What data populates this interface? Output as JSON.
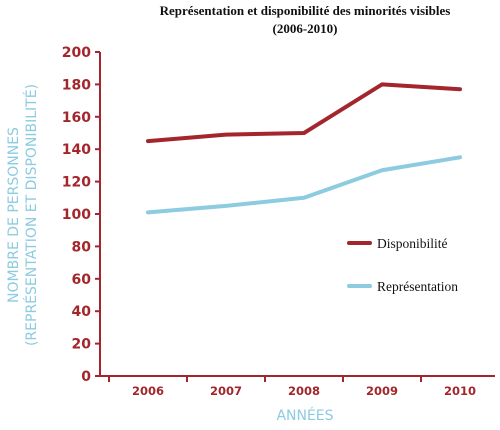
{
  "chart_data": {
    "type": "line",
    "title": "Représentation et disponibilité des minorités visibles",
    "subtitle": "(2006-2010)",
    "xlabel": "ANNÉES",
    "ylabel_line1": "NOMBRE DE PERSONNES",
    "ylabel_line2": "(REPRÉSENTATION ET DISPONIBILITÉ)",
    "categories": [
      "2006",
      "2007",
      "2008",
      "2009",
      "2010"
    ],
    "ylim": [
      0,
      200
    ],
    "yticks": [
      "0",
      "20",
      "40",
      "60",
      "80",
      "100",
      "120",
      "140",
      "160",
      "180",
      "200"
    ],
    "grid": false,
    "legend_position": "center-right",
    "series": [
      {
        "name": "Disponibilité",
        "values": [
          145,
          149,
          150,
          180,
          177
        ],
        "color": "#a3262c"
      },
      {
        "name": "Représentation",
        "values": [
          101,
          105,
          110,
          127,
          135
        ],
        "color": "#8ccbe0"
      }
    ],
    "colors": {
      "axis": "#a3262c",
      "tick_text": "#a3262c",
      "label_text": "#8ccbe0"
    }
  }
}
